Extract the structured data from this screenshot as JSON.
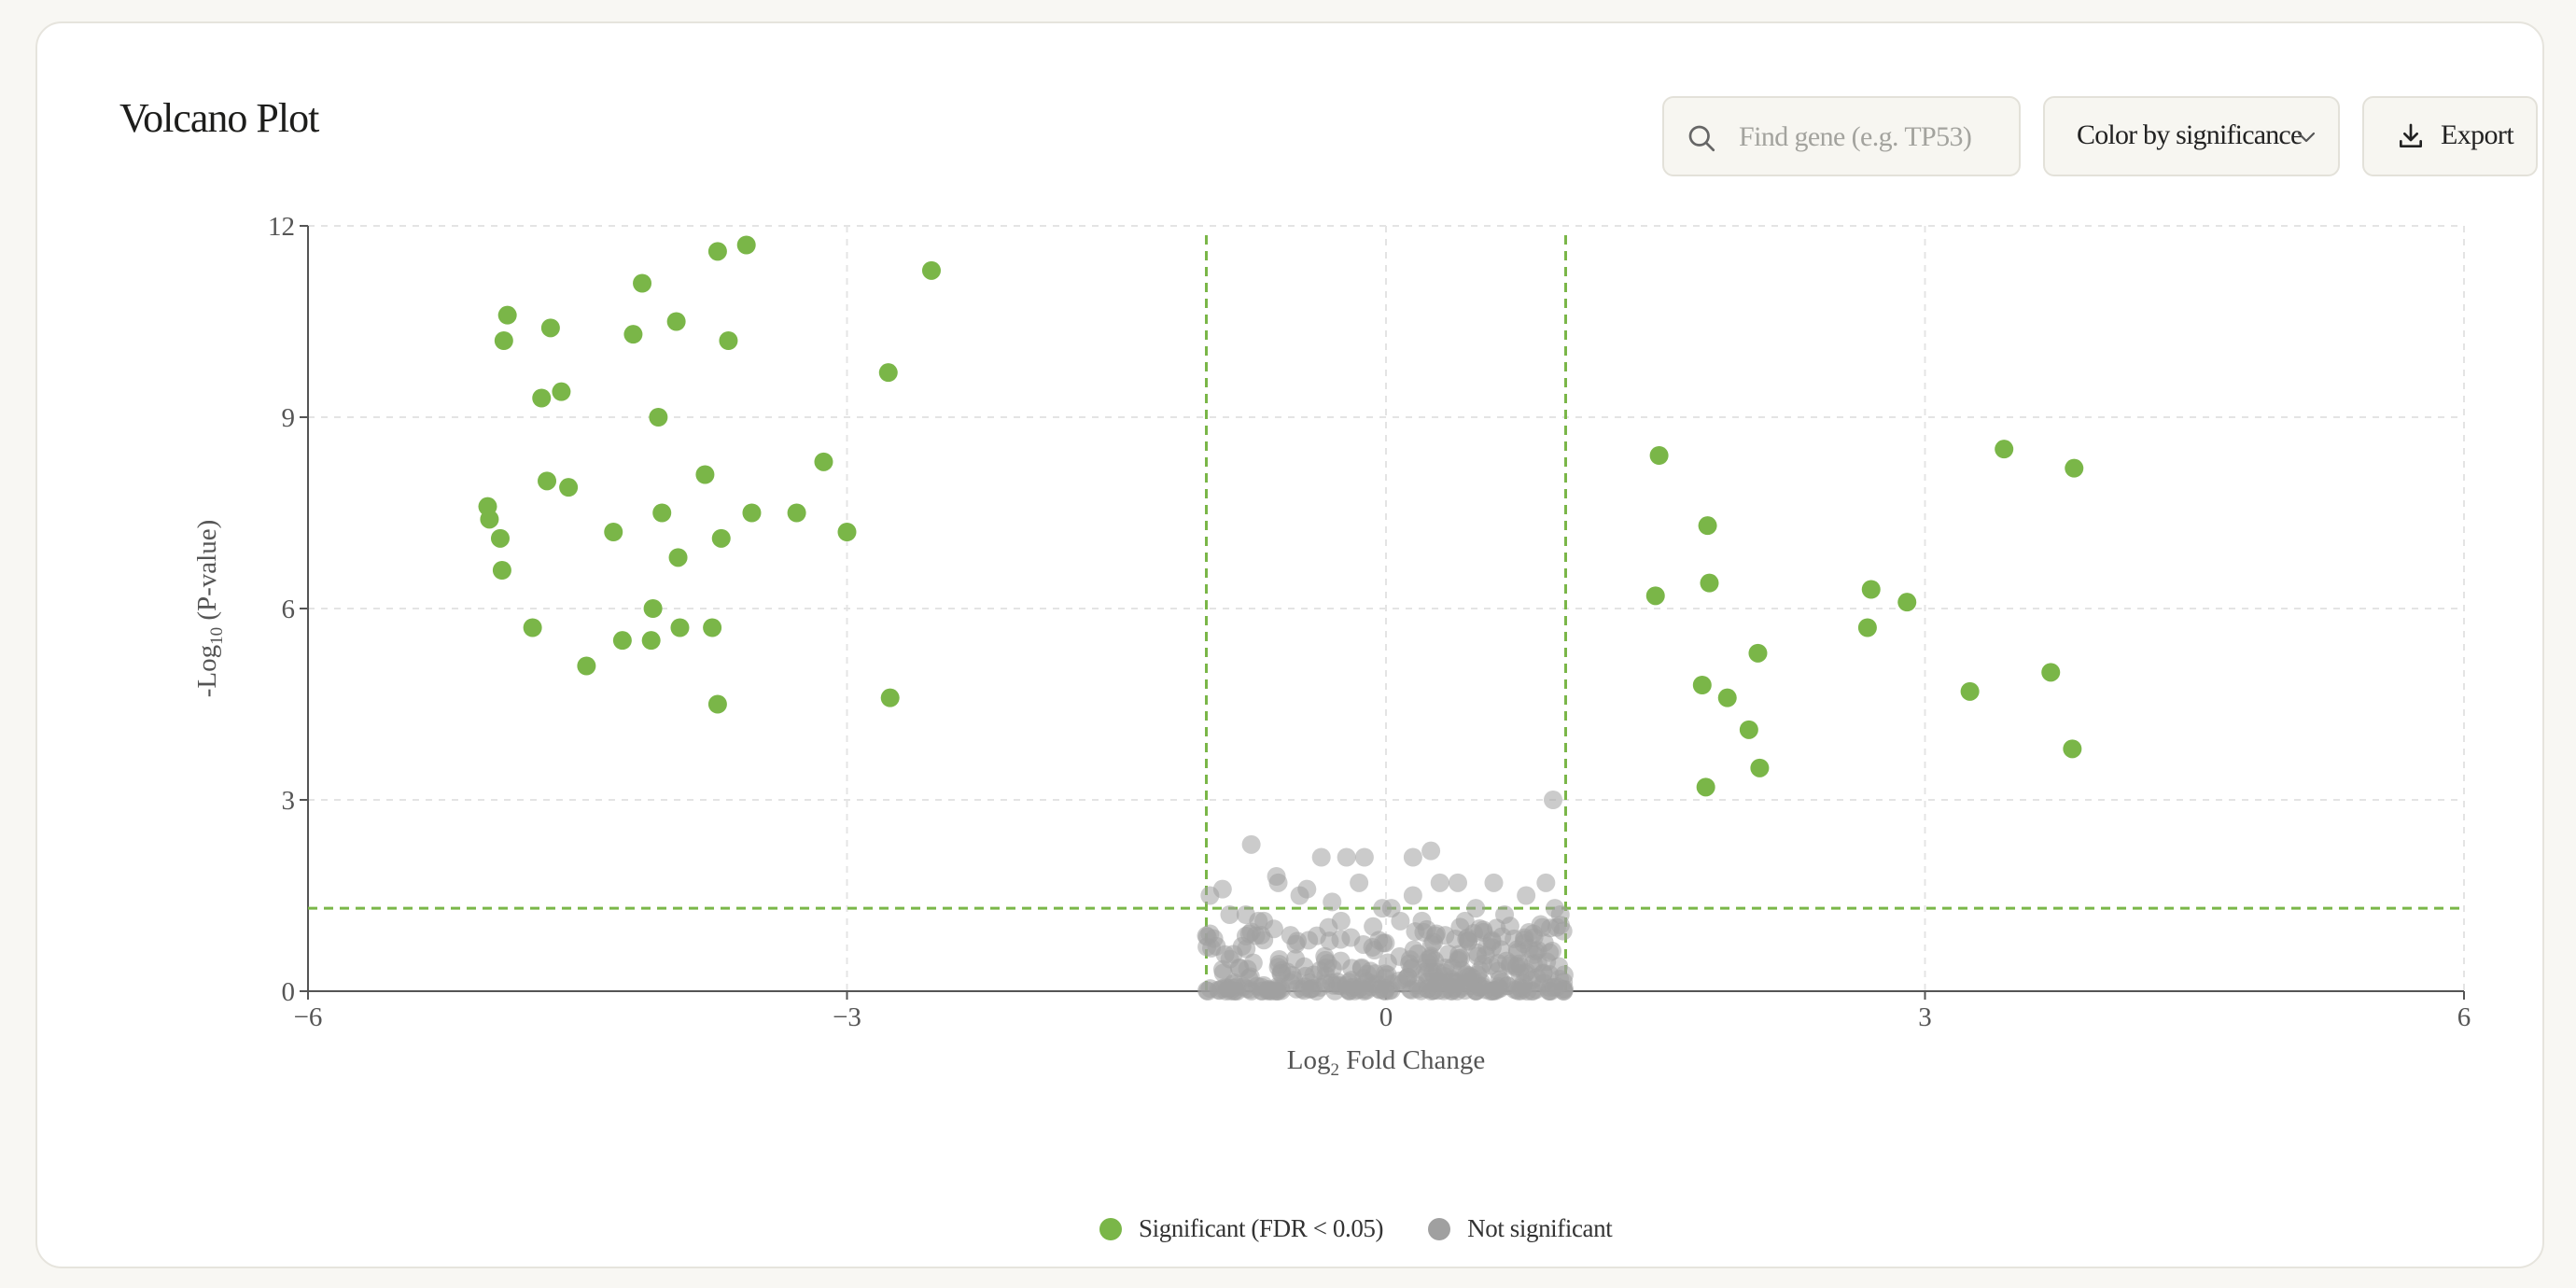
{
  "header": {
    "title": "Volcano Plot"
  },
  "search": {
    "placeholder": "Find gene (e.g. TP53)"
  },
  "color_select": {
    "selected": "Color by significance"
  },
  "export": {
    "label": "Export"
  },
  "colors": {
    "significant": "#7ab648",
    "not_significant": "#a0a0a0",
    "threshold": "#7ab648"
  },
  "legend": [
    {
      "label": "Significant (FDR < 0.05)",
      "color": "#7ab648"
    },
    {
      "label": "Not significant",
      "color": "#a0a0a0"
    }
  ],
  "chart_data": {
    "type": "scatter",
    "title": "Volcano Plot",
    "xlabel": {
      "prefix": "Log",
      "sub": "2",
      "suffix": " Fold Change"
    },
    "ylabel": {
      "prefix": "-Log",
      "sub": "10",
      "suffix": " (P-value)"
    },
    "xlim": [
      -6,
      6
    ],
    "ylim": [
      0,
      12
    ],
    "xticks": [
      -6,
      -3,
      0,
      3,
      6
    ],
    "yticks": [
      0,
      3,
      6,
      9,
      12
    ],
    "grid": true,
    "thresholds": {
      "log2fc": [
        -1,
        1
      ],
      "neglog10p": 1.3
    },
    "legend_position": "bottom-center",
    "series": [
      {
        "name": "Significant (FDR < 0.05)",
        "color": "#7ab648",
        "points": [
          [
            -5.0,
            7.6
          ],
          [
            -4.99,
            7.4
          ],
          [
            -4.93,
            7.1
          ],
          [
            -4.92,
            6.6
          ],
          [
            -4.91,
            10.2
          ],
          [
            -4.89,
            10.6
          ],
          [
            -4.75,
            5.7
          ],
          [
            -4.7,
            9.3
          ],
          [
            -4.67,
            8.0
          ],
          [
            -4.65,
            10.4
          ],
          [
            -4.59,
            9.4
          ],
          [
            -4.55,
            7.9
          ],
          [
            -4.45,
            5.1
          ],
          [
            -4.3,
            7.2
          ],
          [
            -4.25,
            5.5
          ],
          [
            -4.19,
            10.3
          ],
          [
            -4.14,
            11.1
          ],
          [
            -4.09,
            5.5
          ],
          [
            -4.08,
            6.0
          ],
          [
            -4.05,
            9.0
          ],
          [
            -4.03,
            7.5
          ],
          [
            -3.95,
            10.5
          ],
          [
            -3.94,
            6.8
          ],
          [
            -3.93,
            5.7
          ],
          [
            -3.79,
            8.1
          ],
          [
            -3.75,
            5.7
          ],
          [
            -3.72,
            11.6
          ],
          [
            -3.72,
            4.5
          ],
          [
            -3.7,
            7.1
          ],
          [
            -3.66,
            10.2
          ],
          [
            -3.56,
            11.7
          ],
          [
            -3.53,
            7.5
          ],
          [
            -3.28,
            7.5
          ],
          [
            -3.13,
            8.3
          ],
          [
            -3.0,
            7.2
          ],
          [
            -2.77,
            9.7
          ],
          [
            -2.76,
            4.6
          ],
          [
            -2.53,
            11.3
          ],
          [
            1.5,
            6.2
          ],
          [
            1.52,
            8.4
          ],
          [
            1.76,
            4.8
          ],
          [
            1.78,
            3.2
          ],
          [
            1.79,
            7.3
          ],
          [
            1.8,
            6.4
          ],
          [
            1.9,
            4.6
          ],
          [
            2.02,
            4.1
          ],
          [
            2.07,
            5.3
          ],
          [
            2.08,
            3.5
          ],
          [
            2.68,
            5.7
          ],
          [
            2.7,
            6.3
          ],
          [
            2.9,
            6.1
          ],
          [
            3.25,
            4.7
          ],
          [
            3.44,
            8.5
          ],
          [
            3.7,
            5.0
          ],
          [
            3.82,
            3.8
          ],
          [
            3.83,
            8.2
          ]
        ]
      },
      {
        "name": "Not significant",
        "color": "#a0a0a0",
        "points": [
          [
            -0.75,
            2.3
          ],
          [
            -0.36,
            2.1
          ],
          [
            -0.22,
            2.1
          ],
          [
            -0.12,
            2.1
          ],
          [
            0.25,
            2.2
          ],
          [
            0.15,
            2.1
          ],
          [
            0.93,
            3.0
          ],
          [
            -0.91,
            1.6
          ],
          [
            -0.61,
            1.8
          ],
          [
            -0.6,
            1.7
          ],
          [
            -0.44,
            1.6
          ],
          [
            -0.48,
            1.5
          ],
          [
            -0.15,
            1.7
          ],
          [
            0.3,
            1.7
          ],
          [
            0.4,
            1.7
          ],
          [
            0.6,
            1.7
          ],
          [
            0.89,
            1.7
          ],
          [
            -0.98,
            1.5
          ],
          [
            0.15,
            1.5
          ],
          [
            0.78,
            1.5
          ],
          [
            -0.3,
            1.4
          ],
          [
            0.5,
            1.3
          ],
          [
            -0.02,
            1.3
          ],
          [
            0.03,
            1.3
          ],
          [
            0.94,
            1.3
          ],
          [
            -0.87,
            1.2
          ],
          [
            0.66,
            1.2
          ],
          [
            0.97,
            1.2
          ],
          [
            -0.78,
            1.2
          ],
          [
            -0.71,
            1.1
          ],
          [
            -0.68,
            1.1
          ],
          [
            -0.32,
            1.0
          ],
          [
            -0.25,
            1.1
          ],
          [
            0.08,
            1.1
          ],
          [
            0.2,
            1.1
          ],
          [
            0.44,
            1.1
          ],
          [
            0.87,
            1.0
          ],
          [
            0.95,
            1.0
          ],
          [
            -0.98,
            0.9
          ],
          [
            -0.76,
            0.9
          ],
          [
            -0.43,
            0.8
          ],
          [
            -0.04,
            0.8
          ],
          [
            0.28,
            0.9
          ],
          [
            0.59,
            0.8
          ],
          [
            0.82,
            0.9
          ]
        ]
      }
    ]
  }
}
